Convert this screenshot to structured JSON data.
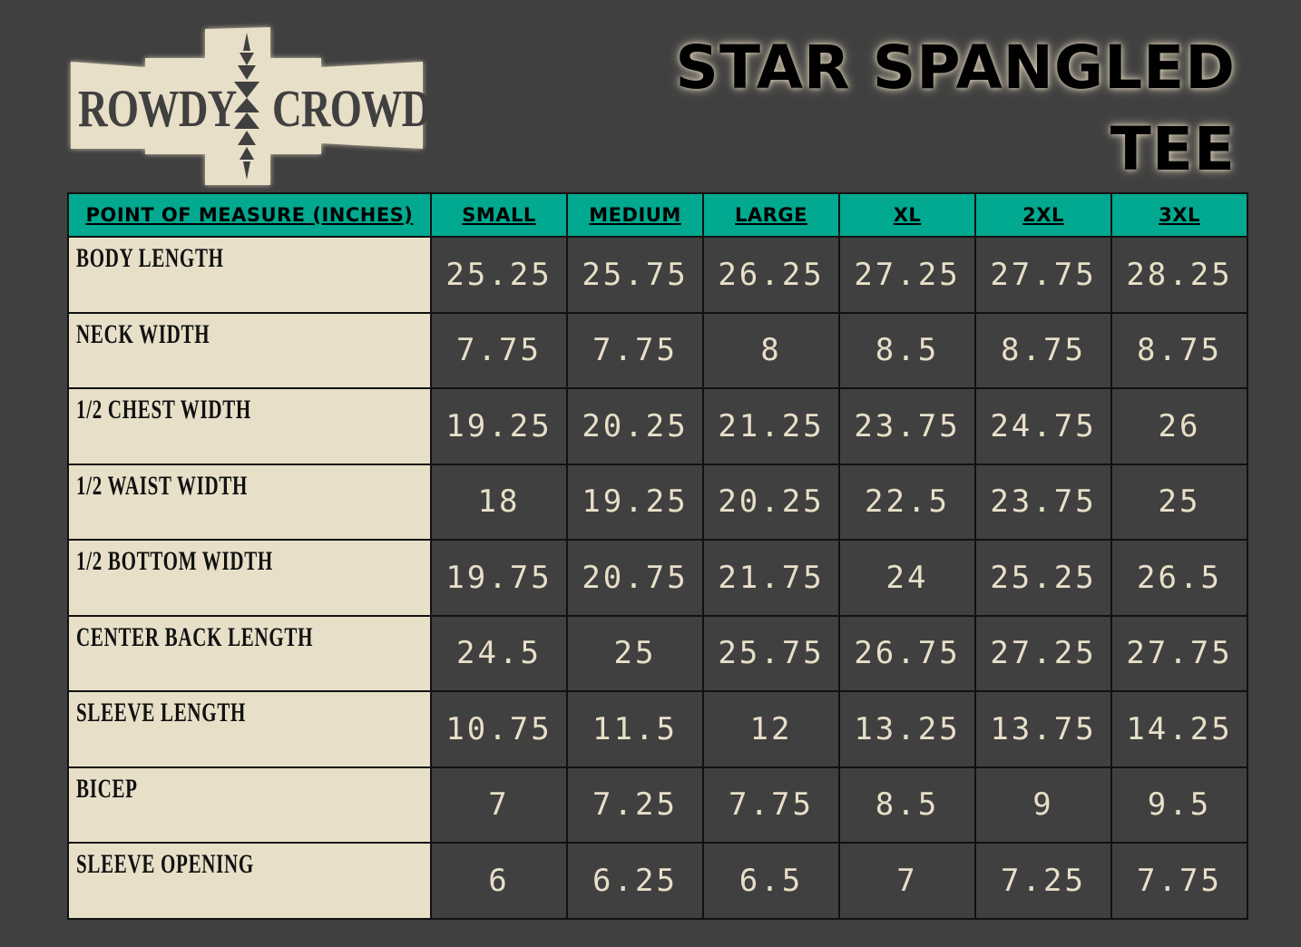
{
  "logo": {
    "left_word": "ROWDY",
    "right_word": "CROWD",
    "colors": {
      "plate": "#e8dfc8",
      "ink": "#404040"
    }
  },
  "title": {
    "line1": "STAR SPANGLED",
    "line2": "TEE"
  },
  "table": {
    "headers": [
      "POINT OF MEASURE (INCHES)",
      "SMALL",
      "MEDIUM",
      "LARGE",
      "XL",
      "2XL",
      "3XL"
    ],
    "rows": [
      {
        "label": "BODY LENGTH",
        "values": [
          "25.25",
          "25.75",
          "26.25",
          "27.25",
          "27.75",
          "28.25"
        ]
      },
      {
        "label": "NECK WIDTH",
        "values": [
          "7.75",
          "7.75",
          "8",
          "8.5",
          "8.75",
          "8.75"
        ]
      },
      {
        "label": "1/2 CHEST WIDTH",
        "values": [
          "19.25",
          "20.25",
          "21.25",
          "23.75",
          "24.75",
          "26"
        ]
      },
      {
        "label": "1/2 WAIST WIDTH",
        "values": [
          "18",
          "19.25",
          "20.25",
          "22.5",
          "23.75",
          "25"
        ]
      },
      {
        "label": "1/2 BOTTOM WIDTH",
        "values": [
          "19.75",
          "20.75",
          "21.75",
          "24",
          "25.25",
          "26.5"
        ]
      },
      {
        "label": "CENTER BACK LENGTH",
        "values": [
          "24.5",
          "25",
          "25.75",
          "26.75",
          "27.25",
          "27.75"
        ]
      },
      {
        "label": "SLEEVE LENGTH",
        "values": [
          "10.75",
          "11.5",
          "12",
          "13.25",
          "13.75",
          "14.25"
        ]
      },
      {
        "label": "BICEP",
        "values": [
          "7",
          "7.25",
          "7.75",
          "8.5",
          "9",
          "9.5"
        ]
      },
      {
        "label": "SLEEVE OPENING",
        "values": [
          "6",
          "6.25",
          "6.5",
          "7",
          "7.25",
          "7.75"
        ]
      }
    ]
  },
  "colors": {
    "background": "#404040",
    "header": "#00a98f",
    "label_cell": "#e8dfc8",
    "value_text": "#e8dfc8"
  }
}
